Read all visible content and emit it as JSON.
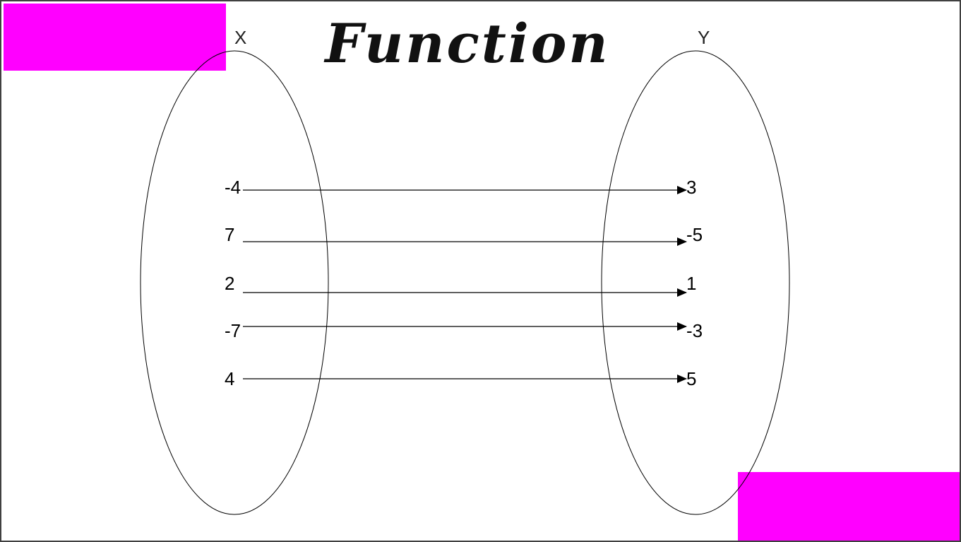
{
  "title": "Function",
  "domain_label": "X",
  "range_label": "Y",
  "mapping": [
    {
      "x": "-4",
      "y": "3"
    },
    {
      "x": "7",
      "y": "-5"
    },
    {
      "x": "2",
      "y": "1"
    },
    {
      "x": "-7",
      "y": "-3"
    },
    {
      "x": "4",
      "y": "5"
    }
  ],
  "colors": {
    "accent": "#ff00ff",
    "stroke": "#000000"
  }
}
